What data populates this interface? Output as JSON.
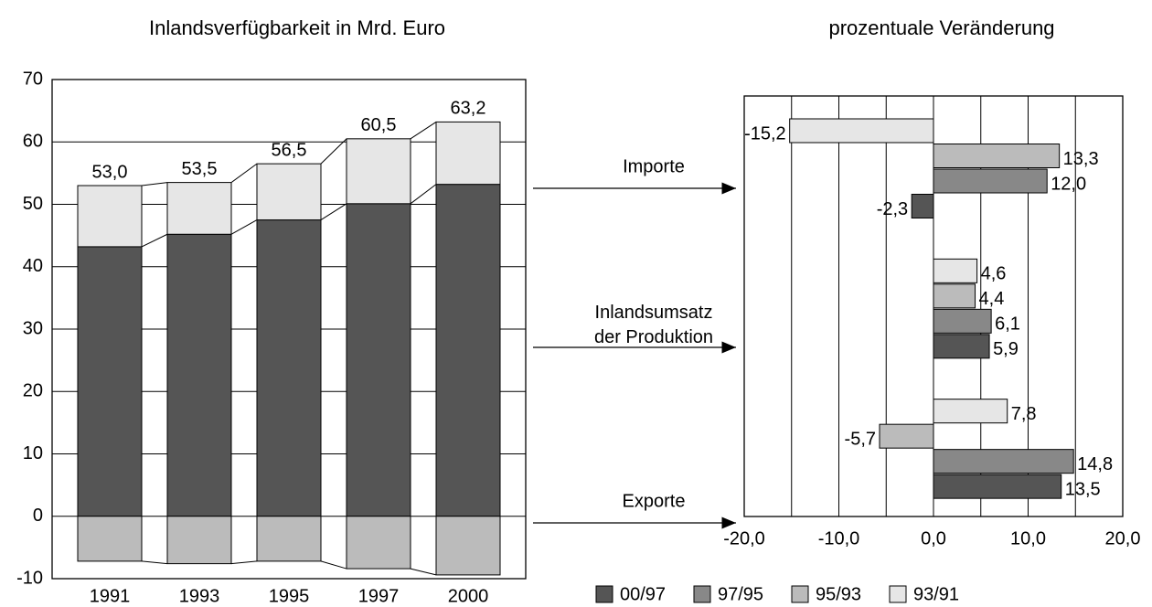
{
  "chart_data": [
    {
      "type": "stacked_bar",
      "title": "Inlandsverfügbarkeit in Mrd. Euro",
      "categories": [
        "1991",
        "1993",
        "1995",
        "1997",
        "2000"
      ],
      "series": [
        {
          "color": "#555555",
          "values": [
            43.2,
            45.2,
            47.5,
            50.1,
            53.2
          ]
        },
        {
          "color": "#e6e6e6",
          "values": [
            9.8,
            8.3,
            9.0,
            10.4,
            10.0
          ]
        },
        {
          "color": "#bbbbbb",
          "values": [
            -7.2,
            -7.6,
            -7.2,
            -8.4,
            -9.4
          ]
        }
      ],
      "totals": [
        53.0,
        53.5,
        56.5,
        60.5,
        63.2
      ],
      "total_labels": [
        "53,0",
        "53,5",
        "56,5",
        "60,5",
        "63,2"
      ],
      "ylim": [
        -10,
        70
      ],
      "yticks": [
        -10,
        0,
        10,
        20,
        30,
        40,
        50,
        60,
        70
      ],
      "grid": true
    },
    {
      "type": "hbar",
      "title": "prozentuale Veränderung",
      "categories": [
        "Importe",
        "Inlandsumsatz\nder Produktion",
        "Exporte"
      ],
      "series": [
        {
          "name": "00/97",
          "color": "#555555",
          "values": [
            -2.3,
            5.9,
            13.5
          ],
          "value_labels": [
            "-2,3",
            "5,9",
            "13,5"
          ]
        },
        {
          "name": "97/95",
          "color": "#888888",
          "values": [
            12.0,
            6.1,
            14.8
          ],
          "value_labels": [
            "12,0",
            "6,1",
            "14,8"
          ]
        },
        {
          "name": "95/93",
          "color": "#bbbbbb",
          "values": [
            13.3,
            4.4,
            -5.7
          ],
          "value_labels": [
            "13,3",
            "4,4",
            "-5,7"
          ]
        },
        {
          "name": "93/91",
          "color": "#e6e6e6",
          "values": [
            -15.2,
            4.6,
            7.8
          ],
          "value_labels": [
            "-15,2",
            "4,6",
            "7,8"
          ]
        }
      ],
      "xlim": [
        -20,
        20
      ],
      "xticks": [
        {
          "value": -20,
          "label": "-20,0"
        },
        {
          "value": -10,
          "label": "-10,0"
        },
        {
          "value": 0,
          "label": "0,0"
        },
        {
          "value": 10,
          "label": "10,0"
        },
        {
          "value": 20,
          "label": "20,0"
        }
      ],
      "grid": true,
      "legend": "bottom"
    }
  ]
}
